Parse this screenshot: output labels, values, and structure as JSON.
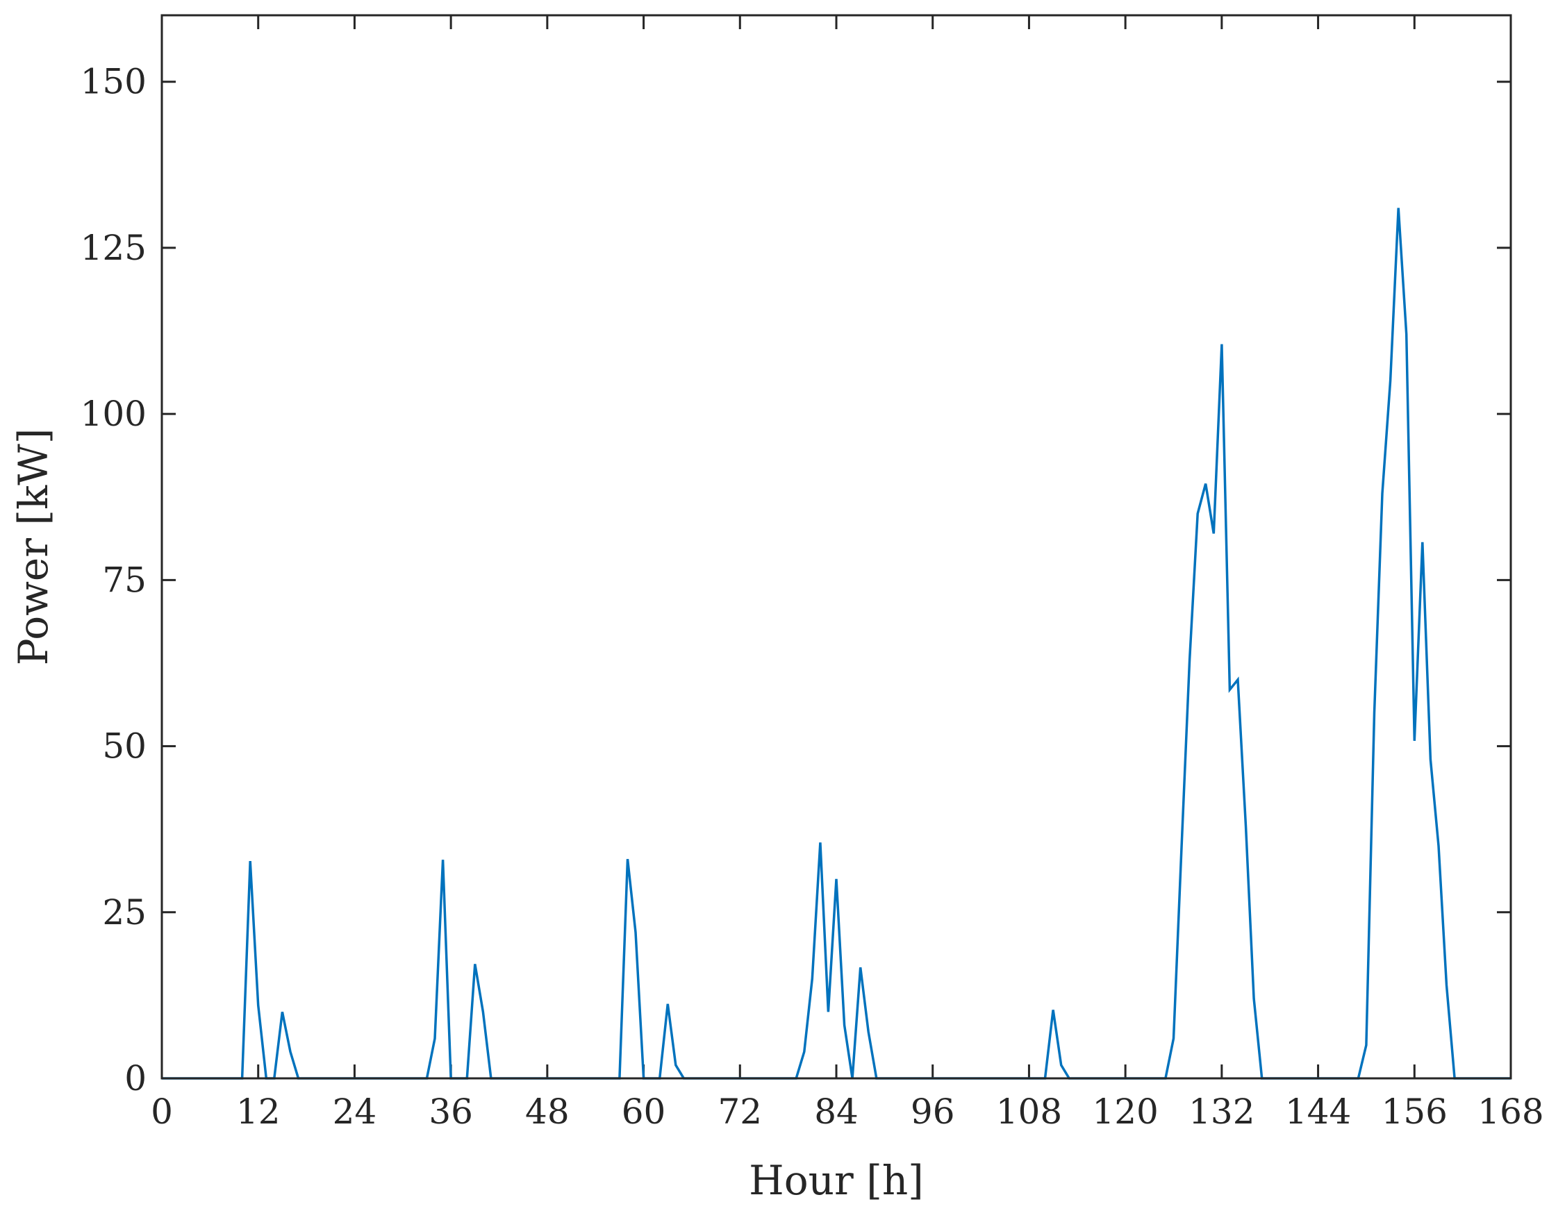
{
  "chart_data": {
    "type": "line",
    "title": "",
    "xlabel": "Hour [h]",
    "ylabel": "Power [kW]",
    "xlim": [
      0,
      168
    ],
    "ylim": [
      0,
      160
    ],
    "xticks": [
      0,
      12,
      24,
      36,
      48,
      60,
      72,
      84,
      96,
      108,
      120,
      132,
      144,
      156,
      168
    ],
    "yticks": [
      0,
      25,
      50,
      75,
      100,
      125,
      150
    ],
    "grid": false,
    "legend": "none",
    "line_color": "#0072BD",
    "series": [
      {
        "x": [
          0,
          10,
          11,
          12,
          13,
          14,
          15,
          16,
          17,
          33,
          34,
          35,
          36,
          37,
          38,
          39,
          40,
          41,
          42,
          57,
          58,
          59,
          60,
          61,
          62,
          63,
          64,
          65,
          66,
          79,
          80,
          81,
          82,
          83,
          84,
          85,
          86,
          87,
          88,
          89,
          110,
          111,
          112,
          113,
          125,
          126,
          127,
          128,
          129,
          130,
          131,
          132,
          133,
          134,
          135,
          136,
          137,
          149,
          150,
          151,
          152,
          153,
          154,
          155,
          156,
          157,
          158,
          159,
          160,
          161,
          168
        ],
        "y": [
          0,
          0,
          32.7,
          11,
          0,
          0,
          10,
          4,
          0,
          0,
          6,
          32.9,
          0,
          0,
          0,
          17.2,
          10,
          0,
          0,
          0,
          33,
          22,
          0,
          0,
          0,
          11.2,
          2,
          0,
          0,
          0,
          4,
          15,
          35.5,
          10,
          30,
          8,
          0,
          16.7,
          7,
          0,
          0,
          10.3,
          2,
          0,
          0,
          6,
          35,
          63,
          85,
          89.5,
          82,
          110.5,
          58.5,
          60,
          38,
          12,
          0,
          0,
          5,
          55,
          88,
          105,
          131,
          112,
          50.8,
          80.7,
          48,
          35,
          14,
          0,
          0
        ]
      }
    ]
  }
}
